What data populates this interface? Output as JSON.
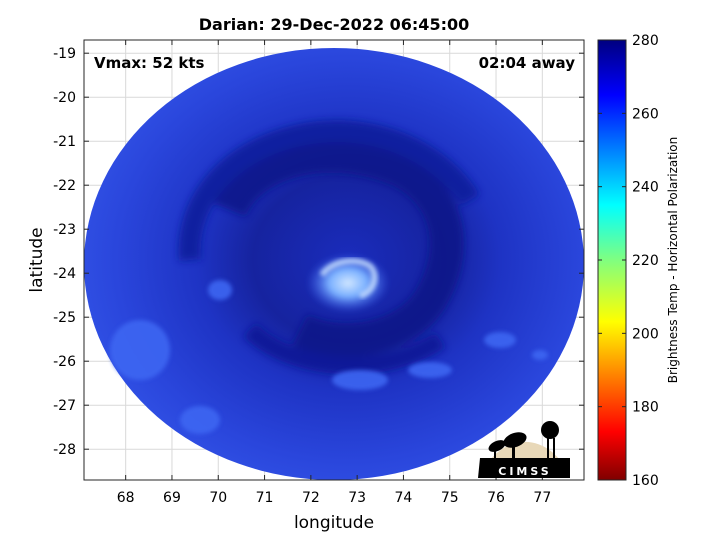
{
  "chart_data": {
    "type": "heatmap",
    "title": "Darian: 29-Dec-2022 06:45:00",
    "xlabel": "longitude",
    "ylabel": "latitude",
    "xlim": [
      67.1,
      77.9
    ],
    "ylim": [
      -28.7,
      -18.7
    ],
    "xticks": [
      68,
      69,
      70,
      71,
      72,
      73,
      74,
      75,
      76,
      77
    ],
    "yticks": [
      -19,
      -20,
      -21,
      -22,
      -23,
      -24,
      -25,
      -26,
      -27,
      -28
    ],
    "xtick_labels": [
      "68",
      "69",
      "70",
      "71",
      "72",
      "73",
      "74",
      "75",
      "76",
      "77"
    ],
    "ytick_labels": [
      "-19",
      "-20",
      "-21",
      "-22",
      "-23",
      "-24",
      "-25",
      "-26",
      "-27",
      "-28"
    ],
    "grid": true,
    "annotations": {
      "vmax": "Vmax: 52 kts",
      "away": "02:04 away"
    },
    "storm_center": {
      "lon": 72.8,
      "lat": -24.0
    },
    "swath_center": {
      "lon": 72.5,
      "lat": -23.7
    },
    "colorbar": {
      "label": "Brightness Temp - Horizontal Polarization",
      "min": 160,
      "max": 280,
      "ticks": [
        160,
        180,
        200,
        220,
        240,
        260,
        280
      ],
      "tick_labels": [
        "160",
        "180",
        "200",
        "220",
        "240",
        "260",
        "280"
      ],
      "colormap": [
        "#800000",
        "#ff0000",
        "#ff8000",
        "#ffff00",
        "#80ff80",
        "#00ffff",
        "#0080ff",
        "#0000ff",
        "#000080"
      ]
    },
    "field_colors": {
      "background": "#2a40d8",
      "dark_band": "#0f1a98",
      "eye_bright": "#6aa0ff",
      "eye_core": "#c0dcff"
    },
    "logo_text": "CIMSS"
  }
}
